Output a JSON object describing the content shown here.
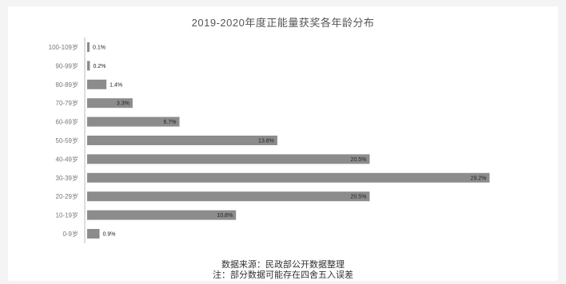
{
  "chart_data": {
    "type": "bar",
    "orientation": "horizontal",
    "title": "2019-2020年度正能量获奖各年龄分布",
    "categories": [
      "100-109岁",
      "90-99岁",
      "80-89岁",
      "70-79岁",
      "60-69岁",
      "50-59岁",
      "40-49岁",
      "30-39岁",
      "20-29岁",
      "10-19岁",
      "0-9岁"
    ],
    "values": [
      0.1,
      0.2,
      1.4,
      3.3,
      6.7,
      13.8,
      20.5,
      29.2,
      20.5,
      10.8,
      0.9
    ],
    "value_labels": [
      "0.1%",
      "0.2%",
      "1.4%",
      "3.3%",
      "6.7%",
      "13.8%",
      "20.5%",
      "29.2%",
      "20.5%",
      "10.8%",
      "0.9%"
    ],
    "unit": "%",
    "xlim": [
      0,
      30
    ],
    "grid": false,
    "bar_color": "#8c8c8c",
    "source_lines": [
      "数据来源：民政部公开数据整理",
      "注：部分数据可能存在四舍五入误差"
    ]
  }
}
